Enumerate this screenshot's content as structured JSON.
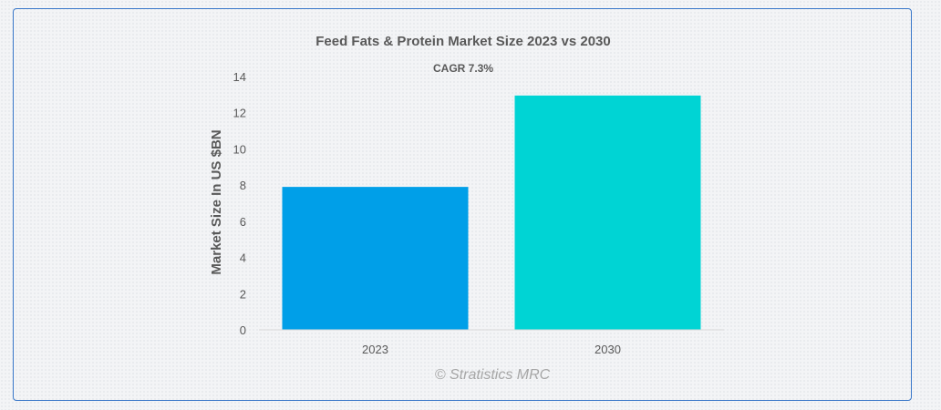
{
  "chart_data": {
    "type": "bar",
    "title": "Feed Fats & Protein Market Size 2023 vs 2030",
    "subtitle": "CAGR 7.3%",
    "categories": [
      "2023",
      "2030"
    ],
    "values": [
      7.9,
      12.95
    ],
    "colors": [
      "#009fe8",
      "#00d4d4"
    ],
    "xlabel": "",
    "ylabel": "Market Size In US $BN",
    "ylim": [
      0,
      14
    ],
    "yticks": [
      0,
      2,
      4,
      6,
      8,
      10,
      12,
      14
    ],
    "grid": false,
    "legend": "none"
  },
  "credit": "© Stratistics MRC"
}
